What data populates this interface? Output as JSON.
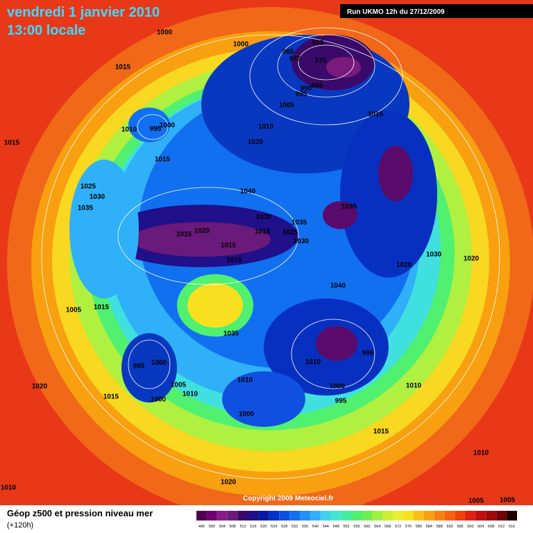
{
  "header": {
    "date": "vendredi 1 janvier 2010",
    "time": "13:00 locale",
    "run": "Run UKMO 12h du 27/12/2009"
  },
  "copyright": "Copyright 2009 Meteociel.fr",
  "footer": {
    "title": "Géop z500 et pression niveau mer",
    "lead": "(+120h)"
  },
  "colorbar": {
    "labels": [
      496,
      500,
      504,
      508,
      512,
      516,
      520,
      524,
      528,
      532,
      536,
      540,
      544,
      548,
      552,
      556,
      560,
      564,
      568,
      572,
      576,
      580,
      584,
      588,
      592,
      596,
      600,
      604,
      608,
      612,
      616
    ],
    "colors": [
      "#500050",
      "#700070",
      "#8a1a8a",
      "#6a1a7a",
      "#3a0a6a",
      "#20108a",
      "#0818a8",
      "#0030c8",
      "#0850e0",
      "#1070f0",
      "#2090f8",
      "#30b0f8",
      "#40d0f0",
      "#40e8d0",
      "#40f0a0",
      "#50f070",
      "#70f050",
      "#a0f040",
      "#c8f030",
      "#e8f030",
      "#f8e020",
      "#f8c010",
      "#f8a010",
      "#f88010",
      "#f86010",
      "#f04010",
      "#e02010",
      "#c01010",
      "#a00808",
      "#700404",
      "#200000"
    ]
  },
  "pressure_labels": [
    1000,
    1000,
    1015,
    965,
    980,
    970,
    975,
    985,
    990,
    995,
    1005,
    1015,
    1010,
    1010,
    995,
    1000,
    1015,
    1020,
    1015,
    1025,
    1030,
    1035,
    1040,
    1035,
    1020,
    1035,
    1015,
    1020,
    1015,
    1025,
    1030,
    1015,
    1015,
    1020,
    1030,
    1020,
    1040,
    1005,
    1015,
    1035,
    995,
    995,
    1000,
    1010,
    1010,
    1005,
    1010,
    1000,
    1000,
    1010,
    1020,
    1015,
    995,
    1000,
    1015,
    1010,
    1020,
    1010,
    1005,
    1005
  ]
}
